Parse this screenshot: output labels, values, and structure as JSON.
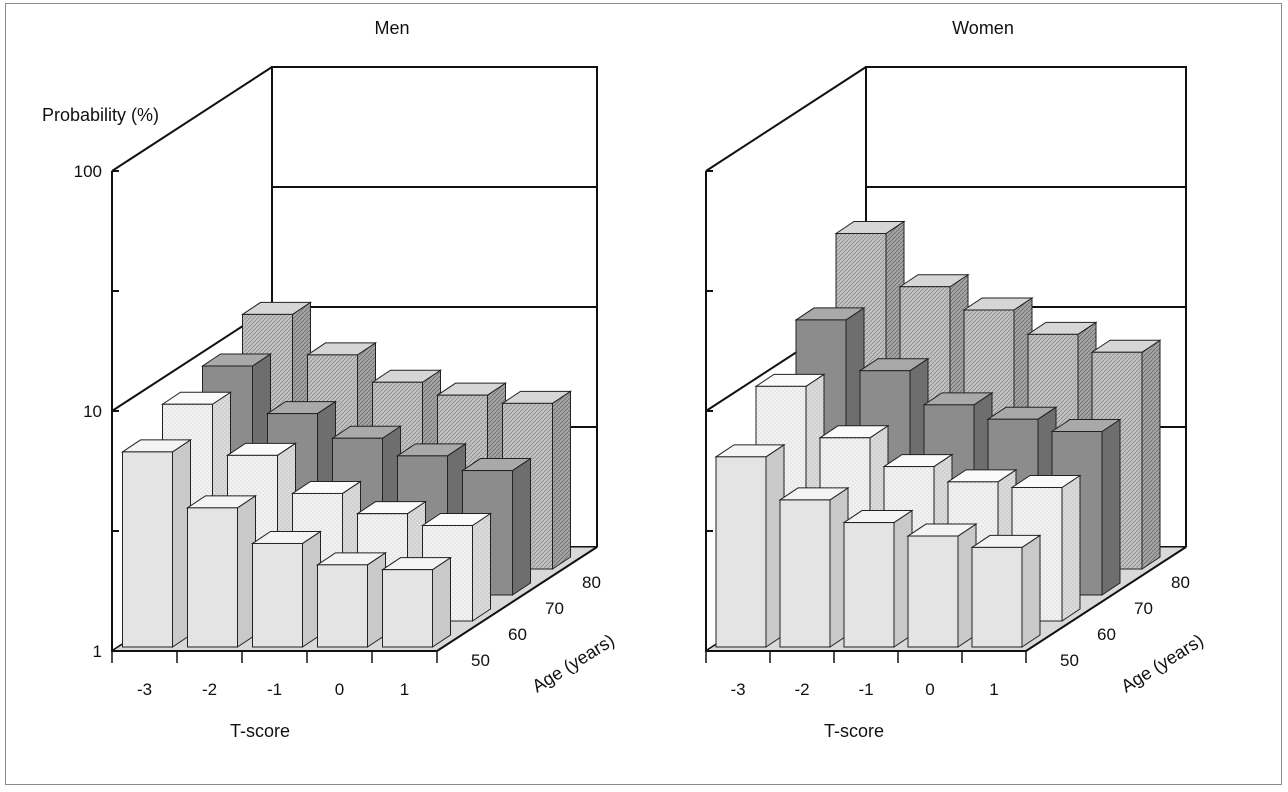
{
  "chart_data": [
    {
      "type": "bar3d",
      "title": "Men",
      "ylabel": "Probability (%)",
      "xlabel": "T-score",
      "zlabel": "Age (years)",
      "yscale": "log",
      "ylim": [
        1,
        100
      ],
      "ytick_labels": [
        "1",
        "10",
        "100"
      ],
      "categories": [
        "-3",
        "-2",
        "-1",
        "0",
        "1"
      ],
      "series": [
        {
          "name": "50",
          "values": [
            6.5,
            3.8,
            2.7,
            2.2,
            2.1
          ]
        },
        {
          "name": "60",
          "values": [
            8.0,
            4.9,
            3.4,
            2.8,
            2.5
          ]
        },
        {
          "name": "70",
          "values": [
            9.0,
            5.7,
            4.5,
            3.8,
            3.3
          ]
        },
        {
          "name": "80",
          "values": [
            11.5,
            7.8,
            6.0,
            5.3,
            4.9
          ]
        }
      ]
    },
    {
      "type": "bar3d",
      "title": "Women",
      "ylabel": "",
      "xlabel": "T-score",
      "zlabel": "Age (years)",
      "yscale": "log",
      "ylim": [
        1,
        100
      ],
      "ytick_labels": [],
      "categories": [
        "-3",
        "-2",
        "-1",
        "0",
        "1"
      ],
      "series": [
        {
          "name": "50",
          "values": [
            6.2,
            4.1,
            3.3,
            2.9,
            2.6
          ]
        },
        {
          "name": "60",
          "values": [
            9.5,
            5.8,
            4.4,
            3.8,
            3.6
          ]
        },
        {
          "name": "70",
          "values": [
            14.0,
            8.6,
            6.2,
            5.4,
            4.8
          ]
        },
        {
          "name": "80",
          "values": [
            25.0,
            15.0,
            12.0,
            9.5,
            8.0
          ]
        }
      ]
    }
  ],
  "colors": {
    "age_50": "#e6e6e6",
    "age_60": "#f2f2f2",
    "age_70": "#8f8f8f",
    "age_80": "#bdbdbd",
    "axes": "#111111"
  }
}
